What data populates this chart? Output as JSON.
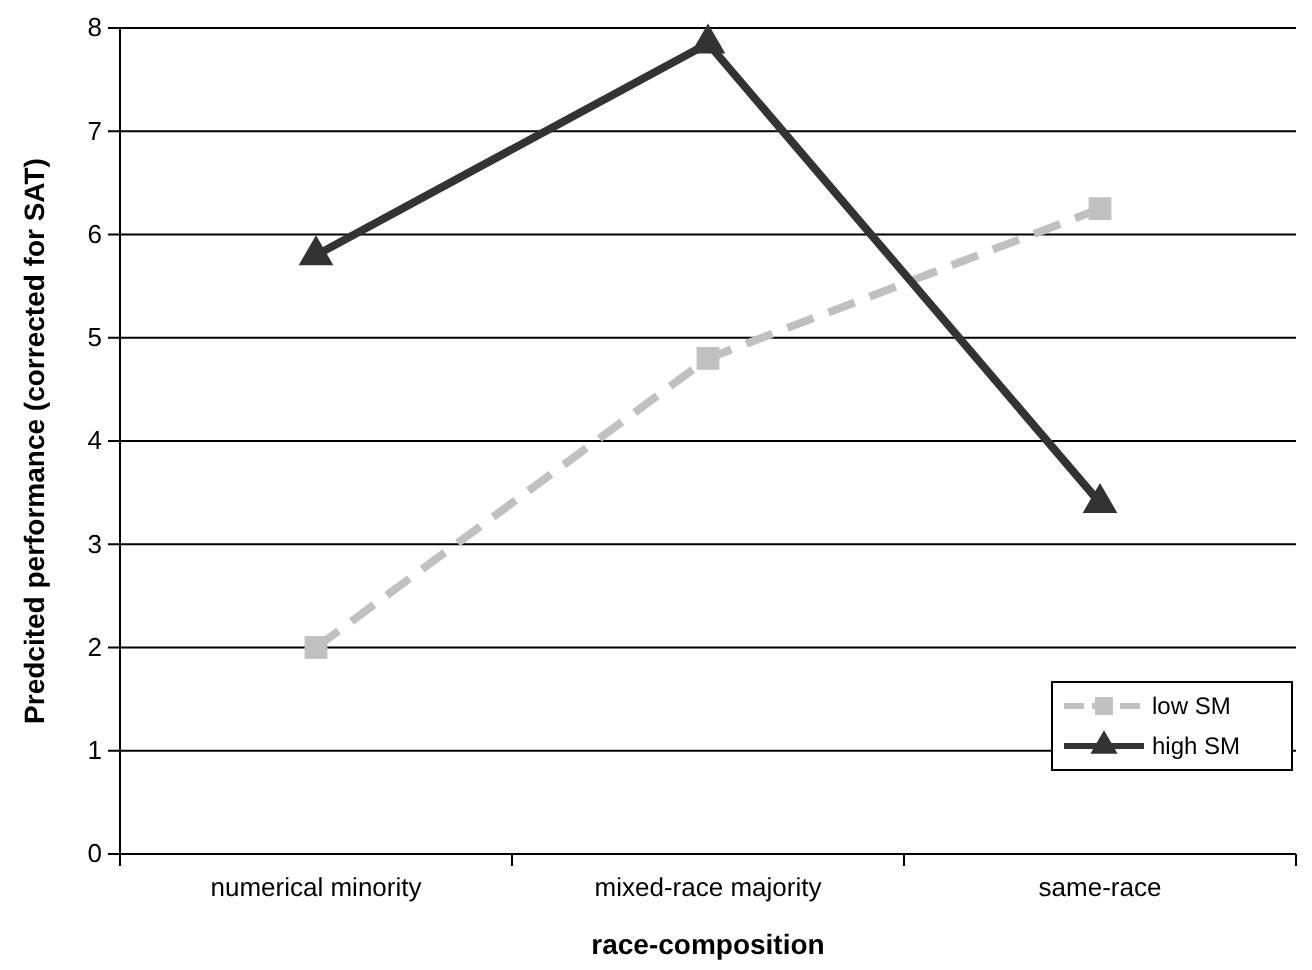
{
  "chart_data": {
    "type": "line",
    "xlabel": "race-composition",
    "ylabel": "Predcited performance (corrected for SAT)",
    "categories": [
      "numerical minority",
      "mixed-race majority",
      "same-race"
    ],
    "series": [
      {
        "name": "low SM",
        "color": "#c0c0c0",
        "values": [
          2.0,
          4.8,
          6.25
        ],
        "marker": "square",
        "line_style": "dashed"
      },
      {
        "name": "high SM",
        "color": "#333333",
        "values": [
          5.8,
          7.85,
          3.4
        ],
        "marker": "triangle",
        "line_style": "solid"
      }
    ],
    "ylim": [
      0,
      8
    ],
    "yticks": [
      0,
      1,
      2,
      3,
      4,
      5,
      6,
      7,
      8
    ],
    "grid": "y",
    "legend": "bottom right"
  }
}
